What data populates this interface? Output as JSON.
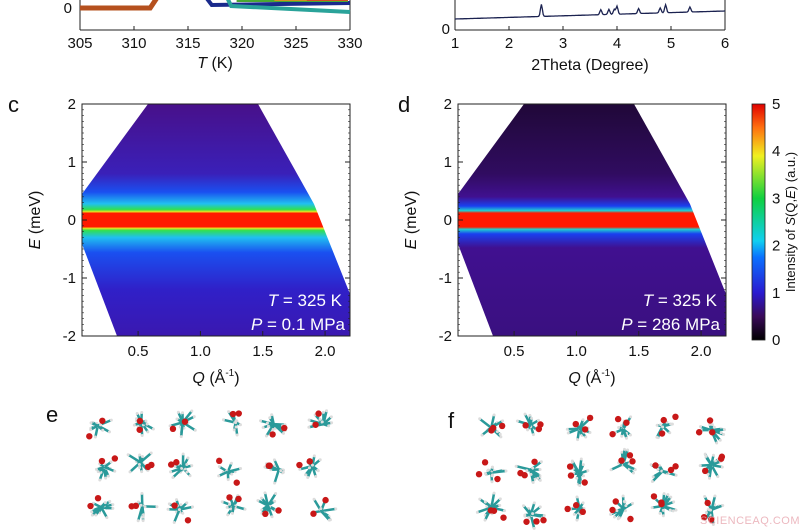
{
  "panels": {
    "a": {
      "xlabel_var": "T",
      "xlabel_unit": " (K)",
      "xticks": [
        "305",
        "310",
        "315",
        "320",
        "325",
        "330"
      ],
      "yticks_visible": [
        "0"
      ],
      "xlim": [
        305,
        330
      ],
      "series_colors": [
        "#b5501e",
        "#1a2a8c",
        "#2aa39a",
        "#4aa832",
        "#d09020",
        "#d05020"
      ]
    },
    "b": {
      "xlabel": "2Theta (Degree)",
      "xticks": [
        "1",
        "2",
        "3",
        "4",
        "5",
        "6"
      ],
      "xlim": [
        1,
        6
      ],
      "line_color": "#1b2250",
      "peaks_2theta": [
        2.6,
        3.7,
        3.85,
        3.95,
        4.0,
        4.4,
        4.8,
        4.9,
        5.35
      ]
    },
    "c": {
      "label": "c",
      "ylabel_var": "E",
      "ylabel_unit": " (meV)",
      "xlabel_var": "Q",
      "xlabel_unit": " (Å",
      "xlabel_exp": "-1",
      "xlabel_close": ")",
      "yticks": [
        "2",
        "1",
        "0",
        "-1",
        "-2"
      ],
      "xticks": [
        "0.5",
        "1.0",
        "1.5",
        "2.0"
      ],
      "ann_T_var": "T",
      "ann_T": " = 325 K",
      "ann_P_var": "P",
      "ann_P": " = 0.1 MPa"
    },
    "d": {
      "label": "d",
      "ylabel_var": "E",
      "ylabel_unit": " (meV)",
      "xlabel_var": "Q",
      "xlabel_unit": " (Å",
      "xlabel_exp": "-1",
      "xlabel_close": ")",
      "yticks": [
        "2",
        "1",
        "0",
        "-1",
        "-2"
      ],
      "xticks": [
        "0.5",
        "1.0",
        "1.5",
        "2.0"
      ],
      "ann_T_var": "T",
      "ann_T": " = 325 K",
      "ann_P_var": "P",
      "ann_P": " = 286 MPa"
    },
    "e": {
      "label": "e"
    },
    "f": {
      "label": "f"
    }
  },
  "colorbar": {
    "ticks": [
      "5",
      "4",
      "3",
      "2",
      "1",
      "0"
    ],
    "range": [
      0,
      5
    ],
    "label_pre": "Intensity of ",
    "label_var": "S",
    "label_mid": "(Q,",
    "label_var2": "E",
    "label_post": ") (a.u.)"
  },
  "chart_data": [
    {
      "type": "heatmap",
      "panel": "c",
      "xlabel": "Q (Å-1)",
      "ylabel": "E (meV)",
      "xlim": [
        0.05,
        2.2
      ],
      "ylim": [
        -2,
        2
      ],
      "xticks": [
        0.5,
        1.0,
        1.5,
        2.0
      ],
      "yticks": [
        -2,
        -1,
        0,
        1,
        2
      ],
      "note": "T = 325 K, P = 0.1 MPa",
      "elastic_peak_E": 0,
      "background_level": 0.8
    },
    {
      "type": "heatmap",
      "panel": "d",
      "xlabel": "Q (Å-1)",
      "ylabel": "E (meV)",
      "xlim": [
        0.05,
        2.2
      ],
      "ylim": [
        -2,
        2
      ],
      "xticks": [
        0.5,
        1.0,
        1.5,
        2.0
      ],
      "yticks": [
        -2,
        -1,
        0,
        1,
        2
      ],
      "note": "T = 325 K, P = 286 MPa",
      "elastic_peak_E": 0,
      "background_level": 0.3
    }
  ],
  "watermark": "SCIENCEAQ.COM"
}
